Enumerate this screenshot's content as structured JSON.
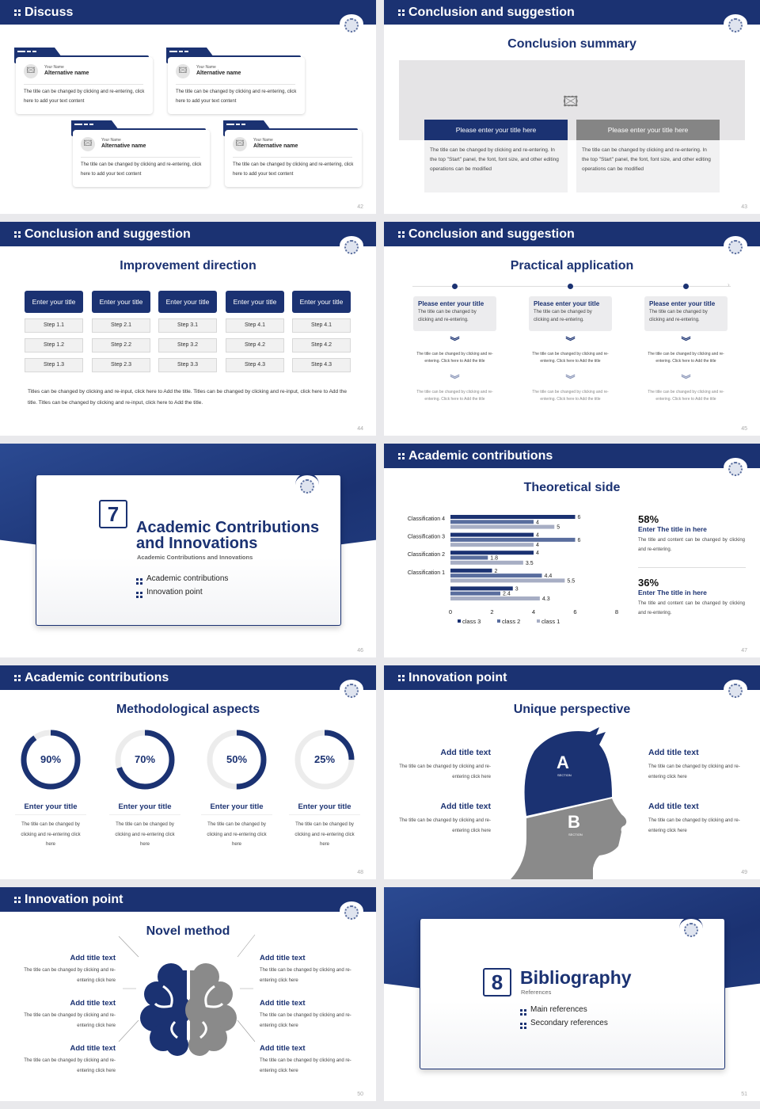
{
  "colors": {
    "navy": "#1b3272",
    "gray": "#8a8a8a",
    "light": "#a7aec4",
    "mid": "#5a6e9e"
  },
  "s42": {
    "header": "Discuss",
    "page": "42",
    "cards": [
      {
        "your_name": "Your Name",
        "alt": "Alternative name",
        "text": "The title can be changed by clicking and re-entering, click here to add your text content"
      },
      {
        "your_name": "Your Name",
        "alt": "Alternative name",
        "text": "The title can be changed by clicking and re-entering, click here to add your text content"
      },
      {
        "your_name": "Your Name",
        "alt": "Alternative name",
        "text": "The title can be changed by clicking and re-entering, click here to add your text content"
      },
      {
        "your_name": "Your Name",
        "alt": "Alternative name",
        "text": "The title can be changed by clicking and re-entering, click here to add your text content"
      }
    ]
  },
  "s43": {
    "header": "Conclusion and suggestion",
    "subtitle": "Conclusion summary",
    "page": "43",
    "boxes": [
      {
        "title": "Please enter your title here",
        "text": "The title can be changed by clicking and re-entering. In the top \"Start\" panel, the font, font size, and other editing operations can be modified"
      },
      {
        "title": "Please enter your title here",
        "text": "The title can be changed by clicking and re-entering. In the top \"Start\" panel, the font, font size, and other editing operations can be modified"
      }
    ]
  },
  "s44": {
    "header": "Conclusion and suggestion",
    "subtitle": "Improvement direction",
    "page": "44",
    "columns": [
      {
        "title": "Enter your title",
        "steps": [
          "Step 1.1",
          "Step 1.2",
          "Step 1.3"
        ]
      },
      {
        "title": "Enter your title",
        "steps": [
          "Step 2.1",
          "Step 2.2",
          "Step 2.3"
        ]
      },
      {
        "title": "Enter your title",
        "steps": [
          "Step 3.1",
          "Step 3.2",
          "Step 3.3"
        ]
      },
      {
        "title": "Enter your title",
        "steps": [
          "Step 4.1",
          "Step 4.2",
          "Step 4.3"
        ]
      },
      {
        "title": "Enter your title",
        "steps": [
          "Step 4.1",
          "Step 4.2",
          "Step 4.3"
        ]
      }
    ],
    "paragraph": "Titles can be changed by clicking and re-input, click here to Add the title. Titles can be changed by clicking and re-input, click here to Add the title. Titles can be changed by clicking and re-input, click here to Add the title."
  },
  "s45": {
    "header": "Conclusion and suggestion",
    "subtitle": "Practical application",
    "page": "45",
    "items": [
      {
        "title": "Please enter your title",
        "text": "The title can be changed by clicking and re-entering.",
        "t1": "The title can be changed by clicking and re-entering. Click here to Add the title",
        "t2": "The title can be changed by clicking and re-entering. Click here to Add the title"
      },
      {
        "title": "Please enter your title",
        "text": "The title can be changed by clicking and re-entering.",
        "t1": "The title can be changed by clicking and re-entering. Click here to Add the title",
        "t2": "The title can be changed by clicking and re-entering. Click here to Add the title"
      },
      {
        "title": "Please enter your title",
        "text": "The title can be changed by clicking and re-entering.",
        "t1": "The title can be changed by clicking and re-entering. Click here to Add the title",
        "t2": "The title can be changed by clicking and re-entering. Click here to Add the title"
      }
    ]
  },
  "s46": {
    "number": "7",
    "title1": "Academic Contributions",
    "title2": "and Innovations",
    "subtitle": "Academic Contributions and Innovations",
    "bullets": [
      "Academic contributions",
      "Innovation point"
    ],
    "page": "46"
  },
  "s47": {
    "header": "Academic contributions",
    "subtitle": "Theoretical side",
    "page": "47",
    "stats": [
      {
        "pct": "58%",
        "title": "Enter The title in here",
        "text": "The title and content can be changed by clicking and re-entering."
      },
      {
        "pct": "36%",
        "title": "Enter The title in here",
        "text": "The title and content can be changed by clicking and re-entering."
      }
    ]
  },
  "chart_data": {
    "type": "bar",
    "orientation": "horizontal",
    "categories": [
      "Classification 4",
      "Classification 3",
      "Classification 2",
      "Classification 1",
      ""
    ],
    "series": [
      {
        "name": "class 3",
        "color": "#1b3272",
        "values": [
          6,
          4,
          4,
          2,
          3
        ]
      },
      {
        "name": "class 2",
        "color": "#5a6e9e",
        "values": [
          4,
          6,
          1.8,
          4.4,
          2.4
        ]
      },
      {
        "name": "class 1",
        "color": "#a7aec4",
        "values": [
          5,
          4,
          3.5,
          5.5,
          4.3
        ]
      }
    ],
    "xlim": [
      0,
      8
    ],
    "xticks": [
      "0",
      "2",
      "4",
      "6",
      "8"
    ],
    "legend": "bottom",
    "grid": false
  },
  "s48": {
    "header": "Academic contributions",
    "subtitle": "Methodological aspects",
    "page": "48",
    "items": [
      {
        "pct": "90%",
        "value": 90,
        "title": "Enter your title",
        "text": "The title can be changed by clicking and re-entering click here"
      },
      {
        "pct": "70%",
        "value": 70,
        "title": "Enter your title",
        "text": "The title can be changed by clicking and re-entering click here"
      },
      {
        "pct": "50%",
        "value": 50,
        "title": "Enter your title",
        "text": "The title can be changed by clicking and re-entering click here"
      },
      {
        "pct": "25%",
        "value": 25,
        "title": "Enter your title",
        "text": "The title can be changed by clicking and re-entering click here"
      }
    ]
  },
  "s49": {
    "header": "Innovation point",
    "subtitle": "Unique perspective",
    "page": "49",
    "a": "A",
    "b": "B",
    "section": "SECTION",
    "items": [
      {
        "title": "Add title text",
        "text": "The title can be changed by clicking and re-entering click here"
      },
      {
        "title": "Add title text",
        "text": "The title can be changed by clicking and re-entering click here"
      },
      {
        "title": "Add title text",
        "text": "The title can be changed by clicking and re-entering click here"
      },
      {
        "title": "Add title text",
        "text": "The title can be changed by clicking and re-entering click here"
      }
    ]
  },
  "s50": {
    "header": "Innovation point",
    "subtitle": "Novel method",
    "page": "50",
    "items": [
      {
        "title": "Add title text",
        "text": "The title can be changed by clicking and re-entering click here"
      },
      {
        "title": "Add title text",
        "text": "The title can be changed by clicking and re-entering click here"
      },
      {
        "title": "Add title text",
        "text": "The title can be changed by clicking and re-entering click here"
      },
      {
        "title": "Add title text",
        "text": "The title can be changed by clicking and re-entering click here"
      },
      {
        "title": "Add title text",
        "text": "The title can be changed by clicking and re-entering click here"
      },
      {
        "title": "Add title text",
        "text": "The title can be changed by clicking and re-entering click here"
      }
    ]
  },
  "s51": {
    "number": "8",
    "title": "Bibliography",
    "subtitle": "References",
    "bullets": [
      "Main references",
      "Secondary references"
    ],
    "page": "51"
  }
}
